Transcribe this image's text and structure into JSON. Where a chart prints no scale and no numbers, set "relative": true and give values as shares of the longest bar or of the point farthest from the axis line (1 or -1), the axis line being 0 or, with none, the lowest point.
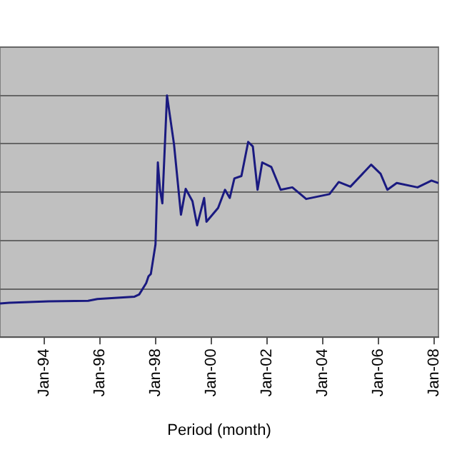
{
  "chart_data": {
    "type": "line",
    "xlabel": "Period (month)",
    "relative": true,
    "grid": "y",
    "legend": false,
    "tick_labels": "x",
    "marker": "none",
    "line_style": "solid",
    "xlim": [
      "1992-06",
      "2008-03"
    ],
    "xticks": [
      {
        "value": "1994-01",
        "label": "Jan-94"
      },
      {
        "value": "1996-01",
        "label": "Jan-96"
      },
      {
        "value": "1998-01",
        "label": "Jan-98"
      },
      {
        "value": "2000-01",
        "label": "Jan-00"
      },
      {
        "value": "2002-01",
        "label": "Jan-02"
      },
      {
        "value": "2004-01",
        "label": "Jan-04"
      },
      {
        "value": "2006-01",
        "label": "Jan-06"
      },
      {
        "value": "2008-01",
        "label": "Jan-08"
      }
    ],
    "x": [
      "1992-06",
      "1992-10",
      "1994-03",
      "1995-08",
      "1995-12",
      "1997-04",
      "1997-06",
      "1997-09",
      "1997-10",
      "1997-11",
      "1998-01",
      "1998-02",
      "1998-03",
      "1998-04",
      "1998-06",
      "1998-09",
      "1998-12",
      "1999-02",
      "1999-05",
      "1999-07",
      "1999-10",
      "1999-11",
      "2000-04",
      "2000-07",
      "2000-09",
      "2000-11",
      "2001-02",
      "2001-05",
      "2001-07",
      "2001-09",
      "2001-11",
      "2002-03",
      "2002-07",
      "2002-12",
      "2003-06",
      "2004-04",
      "2004-08",
      "2005-01",
      "2005-10",
      "2006-02",
      "2006-05",
      "2006-09",
      "2007-06",
      "2007-12",
      "2008-03"
    ],
    "series": [
      {
        "color": "#1a1a80",
        "values": [
          0.14,
          0.143,
          0.149,
          0.151,
          0.158,
          0.168,
          0.177,
          0.224,
          0.252,
          0.262,
          0.384,
          0.723,
          0.61,
          0.554,
          1,
          0.798,
          0.507,
          0.614,
          0.563,
          0.463,
          0.576,
          0.478,
          0.535,
          0.61,
          0.576,
          0.657,
          0.667,
          0.808,
          0.789,
          0.61,
          0.723,
          0.704,
          0.61,
          0.62,
          0.572,
          0.592,
          0.642,
          0.623,
          0.714,
          0.676,
          0.61,
          0.638,
          0.62,
          0.648,
          0.638
        ]
      }
    ]
  }
}
